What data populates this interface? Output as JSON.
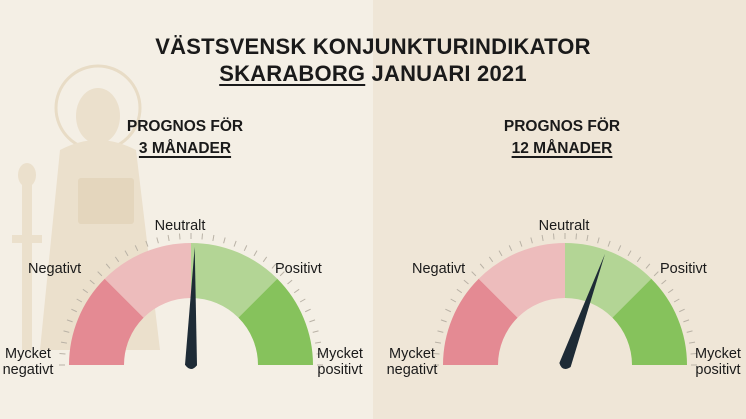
{
  "title": {
    "line1": "VÄSTSVENSK KONJUNKTURINDIKATOR",
    "region": "SKARABORG",
    "period": "JANUARI 2021"
  },
  "gauges": [
    {
      "heading": "PROGNOS FÖR",
      "horizon": "3 MÅNADER",
      "needle_value": 0.02,
      "labels": {
        "very_negative_1": "Mycket",
        "very_negative_2": "negativt",
        "negative": "Negativt",
        "neutral": "Neutralt",
        "positive": "Positivt",
        "very_positive_1": "Mycket",
        "very_positive_2": "positivt"
      }
    },
    {
      "heading": "PROGNOS FÖR",
      "horizon": "12 MÅNADER",
      "needle_value": 0.22,
      "labels": {
        "very_negative_1": "Mycket",
        "very_negative_2": "negativt",
        "negative": "Negativt",
        "neutral": "Neutralt",
        "positive": "Positivt",
        "very_positive_1": "Mycket",
        "very_positive_2": "positivt"
      }
    }
  ],
  "colors": {
    "very_negative": "#e48a93",
    "negative": "#edbcbc",
    "positive": "#b3d595",
    "very_positive": "#86c25c",
    "needle": "#1e2b36"
  }
}
